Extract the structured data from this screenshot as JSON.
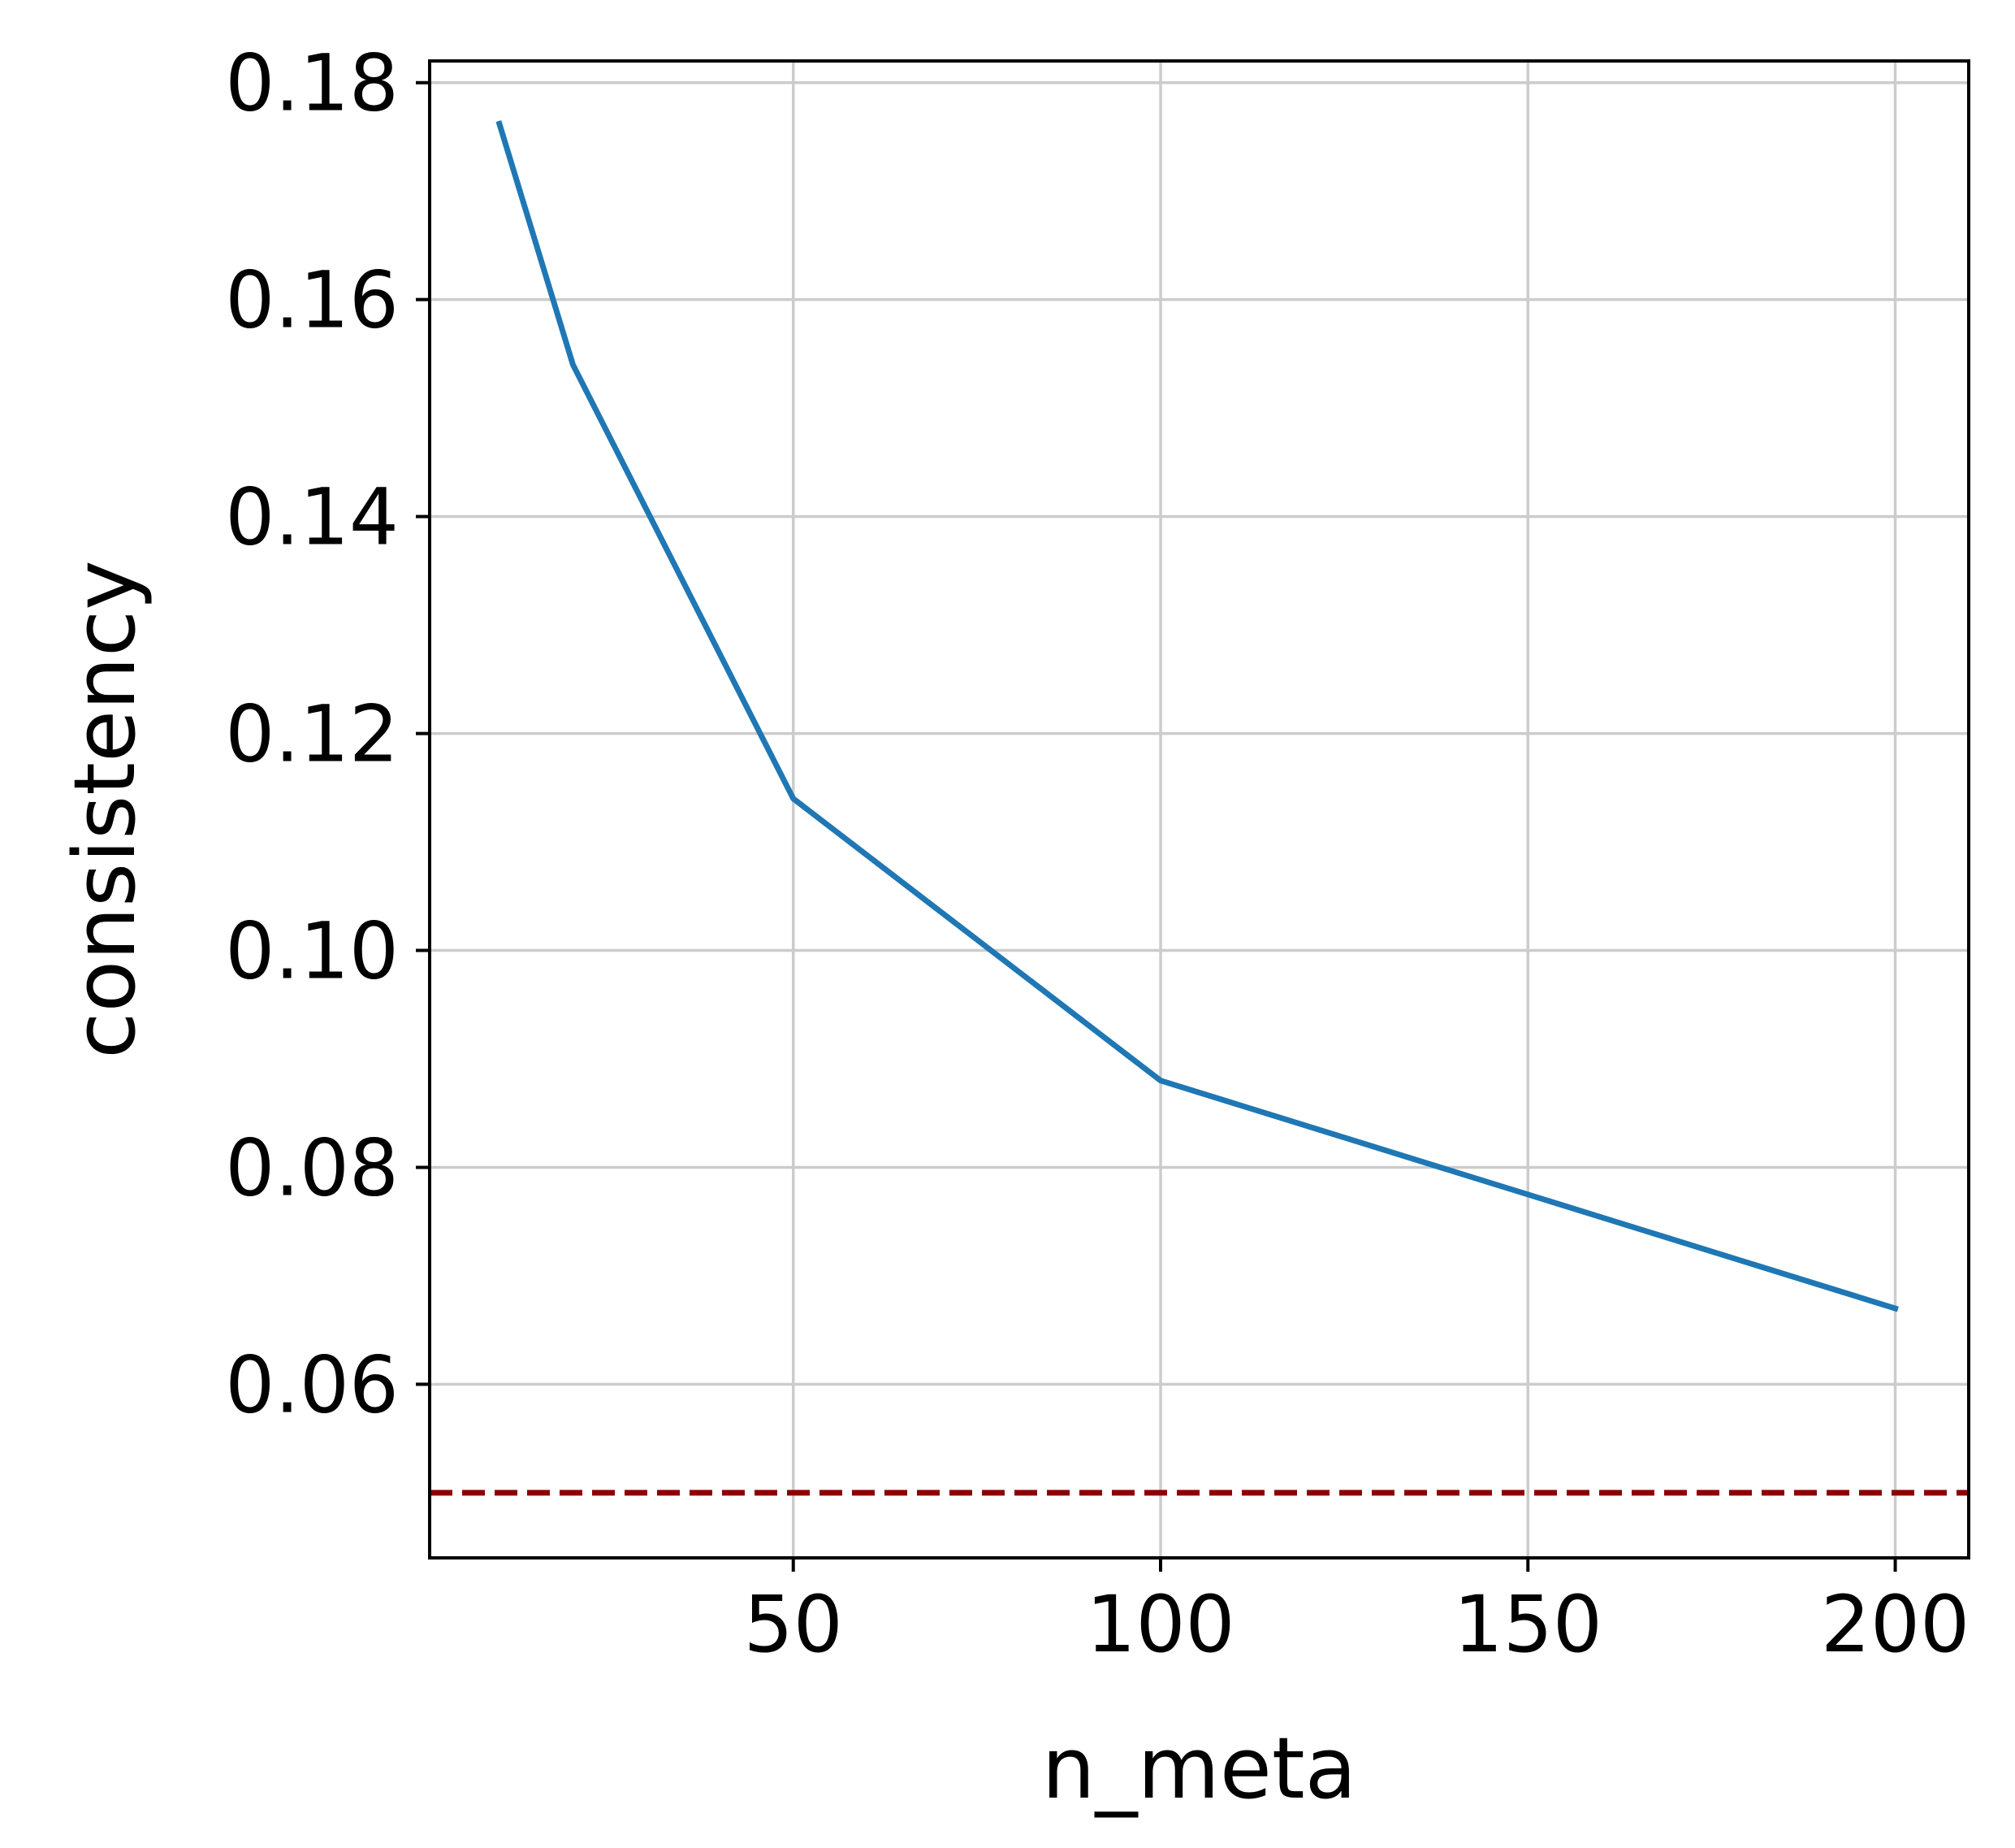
{
  "chart_data": {
    "type": "line",
    "title": "",
    "xlabel": "n_meta",
    "ylabel": "consistency",
    "xlim": [
      0.5,
      210
    ],
    "ylim": [
      0.044,
      0.182
    ],
    "xticks": [
      50,
      100,
      150,
      200
    ],
    "xtick_labels": [
      "50",
      "100",
      "150",
      "200"
    ],
    "yticks": [
      0.06,
      0.08,
      0.1,
      0.12,
      0.14,
      0.16,
      0.18
    ],
    "ytick_labels": [
      "0.06",
      "0.08",
      "0.10",
      "0.12",
      "0.14",
      "0.16",
      "0.18"
    ],
    "grid": true,
    "series": [
      {
        "x": [
          10,
          20,
          50,
          100,
          200
        ],
        "y": [
          0.1762,
          0.154,
          0.114,
          0.088,
          0.067
        ],
        "color": "#1f77b4",
        "style": "solid"
      }
    ],
    "reference_lines": [
      {
        "orientation": "horizontal",
        "y": 0.05,
        "color": "#8b0000",
        "style": "dashed"
      }
    ],
    "legend": "none"
  }
}
